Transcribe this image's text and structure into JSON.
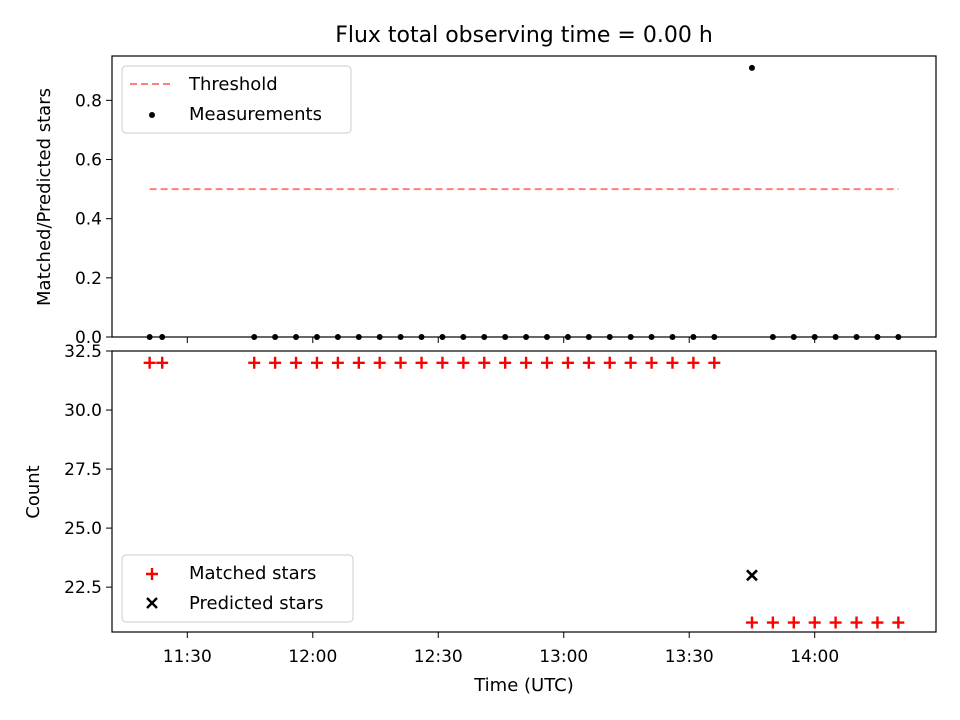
{
  "figure": {
    "title": "Flux total observing time = 0.00 h"
  },
  "chart_data": [
    {
      "type": "scatter",
      "panel": "top",
      "title": "Flux total observing time = 0.00 h",
      "xlabel": "",
      "ylabel": "Matched/Predicted stars",
      "xlim": [
        "11:12",
        "14:29"
      ],
      "ylim": [
        0,
        0.95
      ],
      "yticks": [
        0.0,
        0.2,
        0.4,
        0.6,
        0.8
      ],
      "yticklabels": [
        "0.0",
        "0.2",
        "0.4",
        "0.6",
        "0.8"
      ],
      "xticks": [
        "11:30",
        "12:00",
        "12:30",
        "13:00",
        "13:30",
        "14:00"
      ],
      "grid": false,
      "legend": "top-left",
      "series": [
        {
          "name": "Threshold",
          "kind": "dashed-line",
          "color": "#ff7f7f",
          "x": [
            "11:21",
            "14:20"
          ],
          "y": [
            0.5,
            0.5
          ]
        },
        {
          "name": "Measurements",
          "kind": "dot",
          "color": "#000000",
          "x": [
            "11:21",
            "11:24",
            "11:46",
            "11:51",
            "11:56",
            "12:01",
            "12:06",
            "12:11",
            "12:16",
            "12:21",
            "12:26",
            "12:31",
            "12:36",
            "12:41",
            "12:46",
            "12:51",
            "12:56",
            "13:01",
            "13:06",
            "13:11",
            "13:16",
            "13:21",
            "13:26",
            "13:31",
            "13:36",
            "13:45",
            "13:50",
            "13:55",
            "14:00",
            "14:05",
            "14:10",
            "14:15",
            "14:20"
          ],
          "y": [
            0,
            0,
            0,
            0,
            0,
            0,
            0,
            0,
            0,
            0,
            0,
            0,
            0,
            0,
            0,
            0,
            0,
            0,
            0,
            0,
            0,
            0,
            0,
            0,
            0,
            0.91,
            0,
            0,
            0,
            0,
            0,
            0,
            0
          ]
        }
      ]
    },
    {
      "type": "scatter",
      "panel": "bottom",
      "title": "",
      "xlabel": "Time (UTC)",
      "ylabel": "Count",
      "xlim": [
        "11:12",
        "14:29"
      ],
      "ylim": [
        20.6,
        32.5
      ],
      "yticks": [
        22.5,
        25.0,
        27.5,
        30.0,
        32.5
      ],
      "yticklabels": [
        "22.5",
        "25.0",
        "27.5",
        "30.0",
        "32.5"
      ],
      "xticks": [
        "11:30",
        "12:00",
        "12:30",
        "13:00",
        "13:30",
        "14:00"
      ],
      "xticklabels": [
        "11:30",
        "12:00",
        "12:30",
        "13:00",
        "13:30",
        "14:00"
      ],
      "grid": false,
      "legend": "bottom-left",
      "series": [
        {
          "name": "Matched stars",
          "kind": "plus",
          "color": "#ff0000",
          "x": [
            "11:21",
            "11:24",
            "11:46",
            "11:51",
            "11:56",
            "12:01",
            "12:06",
            "12:11",
            "12:16",
            "12:21",
            "12:26",
            "12:31",
            "12:36",
            "12:41",
            "12:46",
            "12:51",
            "12:56",
            "13:01",
            "13:06",
            "13:11",
            "13:16",
            "13:21",
            "13:26",
            "13:31",
            "13:36",
            "13:45",
            "13:50",
            "13:55",
            "14:00",
            "14:05",
            "14:10",
            "14:15",
            "14:20"
          ],
          "y": [
            32,
            32,
            32,
            32,
            32,
            32,
            32,
            32,
            32,
            32,
            32,
            32,
            32,
            32,
            32,
            32,
            32,
            32,
            32,
            32,
            32,
            32,
            32,
            32,
            32,
            21,
            21,
            21,
            21,
            21,
            21,
            21,
            21
          ]
        },
        {
          "name": "Predicted stars",
          "kind": "x",
          "color": "#000000",
          "x": [
            "13:45"
          ],
          "y": [
            23
          ]
        }
      ]
    }
  ]
}
